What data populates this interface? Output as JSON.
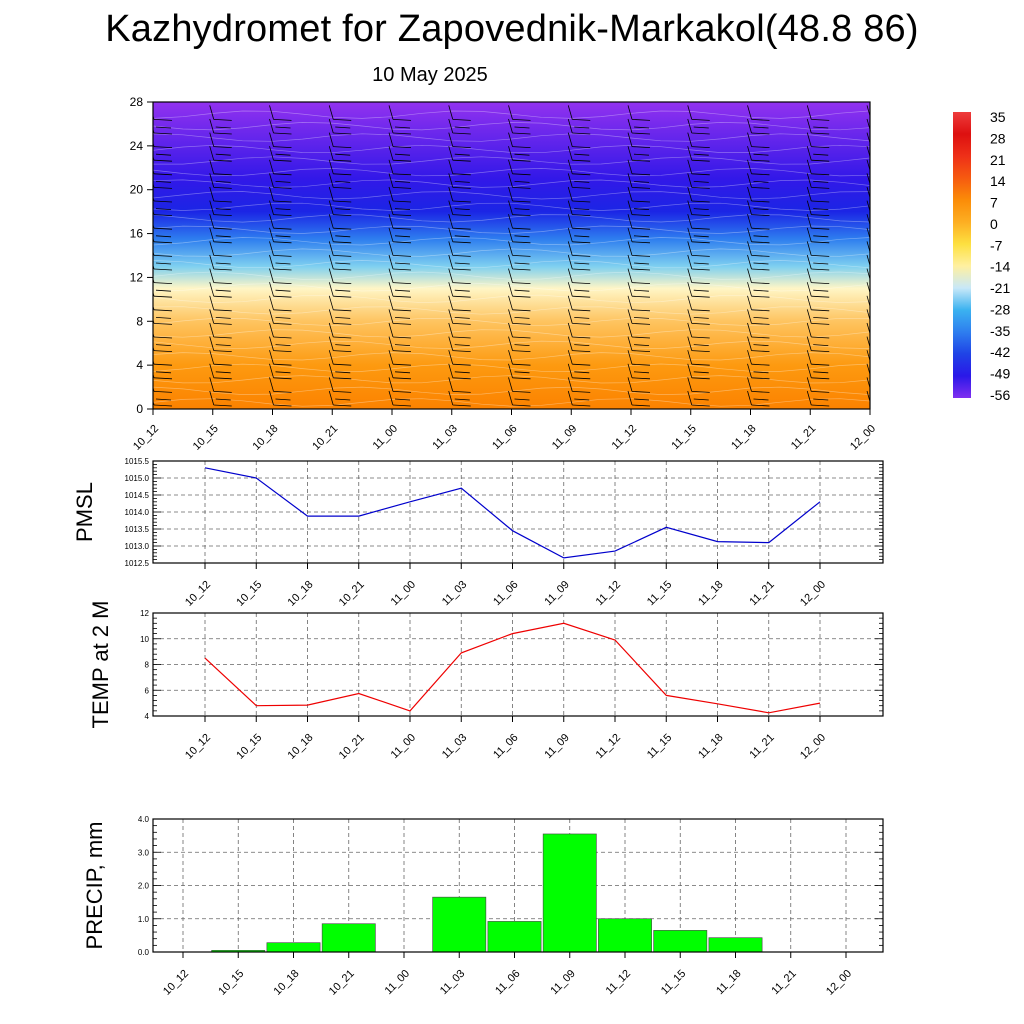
{
  "title": "Kazhydromet for Zapovednik-Markakol(48.8 86)",
  "date": "10 May 2025",
  "chart_data": [
    {
      "type": "heatmap",
      "name": "cross-section",
      "x_categories": [
        "10_12",
        "10_15",
        "10_18",
        "10_21",
        "11_00",
        "11_03",
        "11_06",
        "11_09",
        "11_12",
        "11_15",
        "11_18",
        "11_21",
        "12_00"
      ],
      "y_ticks": [
        0,
        4,
        8,
        12,
        16,
        20,
        24,
        28
      ],
      "ylim": [
        0,
        28
      ],
      "colorbar": {
        "levels": [
          35,
          28,
          21,
          14,
          7,
          0,
          -7,
          -14,
          -21,
          -28,
          -35,
          -42,
          -49,
          -56
        ],
        "colors": [
          "#ee3c3c",
          "#dd1010",
          "#ee3018",
          "#f65a10",
          "#fb8c08",
          "#fdae22",
          "#fde040",
          "#fff0a0",
          "#c8e8f8",
          "#3bb2f0",
          "#2e7eef",
          "#1f43e6",
          "#2a18e8",
          "#7f2ff0"
        ]
      },
      "profile_levels": [
        {
          "level": 0,
          "value": 9,
          "color": "#fb8200"
        },
        {
          "level": 4,
          "value": 5,
          "color": "#fd9a10"
        },
        {
          "level": 8,
          "value": -3,
          "color": "#fec460"
        },
        {
          "level": 11,
          "value": -12,
          "color": "#fff6c6"
        },
        {
          "level": 13,
          "value": -24,
          "color": "#7fd0f0"
        },
        {
          "level": 15.5,
          "value": -40,
          "color": "#2e7eef"
        },
        {
          "level": 18,
          "value": -58,
          "color": "#1b25e5"
        },
        {
          "level": 21,
          "value": -60,
          "color": "#3218e8"
        },
        {
          "level": 28,
          "value": -64,
          "color": "#9232ef"
        }
      ]
    },
    {
      "type": "line",
      "ylabel": "PMSL",
      "categories": [
        "10_12",
        "10_15",
        "10_18",
        "10_21",
        "11_00",
        "11_03",
        "11_06",
        "11_09",
        "11_12",
        "11_15",
        "11_18",
        "11_21",
        "12_00"
      ],
      "values": [
        1015.3,
        1015.0,
        1013.88,
        1013.88,
        1014.3,
        1014.7,
        1013.45,
        1012.65,
        1012.85,
        1013.55,
        1013.13,
        1013.1,
        1014.3
      ],
      "ylim": [
        1012.5,
        1015.5
      ],
      "yticks": [
        "1012.5",
        "1013.0",
        "1013.5",
        "1014.0",
        "1014.5",
        "1015.0",
        "1015.5"
      ],
      "color": "#0000cc",
      "grid": true
    },
    {
      "type": "line",
      "ylabel": "TEMP at 2 M",
      "categories": [
        "10_12",
        "10_15",
        "10_18",
        "10_21",
        "11_00",
        "11_03",
        "11_06",
        "11_09",
        "11_12",
        "11_15",
        "11_18",
        "11_21",
        "12_00"
      ],
      "values": [
        8.5,
        4.8,
        4.85,
        5.75,
        4.4,
        8.9,
        10.4,
        11.2,
        9.9,
        5.6,
        4.95,
        4.25,
        5.0
      ],
      "ylim": [
        4,
        12
      ],
      "yticks": [
        "4",
        "6",
        "8",
        "10",
        "12"
      ],
      "color": "#ee0000",
      "grid": true
    },
    {
      "type": "bar",
      "ylabel": "PRECIP, mm",
      "categories": [
        "10_12",
        "10_15",
        "10_18",
        "10_21",
        "11_00",
        "11_03",
        "11_06",
        "11_09",
        "11_12",
        "11_15",
        "11_18",
        "11_21",
        "12_00"
      ],
      "values": [
        0.0,
        0.05,
        0.28,
        0.85,
        0.0,
        1.65,
        0.92,
        3.55,
        1.0,
        0.65,
        0.43,
        0.0,
        0.0
      ],
      "ylim": [
        0,
        4
      ],
      "yticks": [
        "0.0",
        "1.0",
        "2.0",
        "3.0",
        "4.0"
      ],
      "color": "#00ff00",
      "grid": true
    }
  ]
}
